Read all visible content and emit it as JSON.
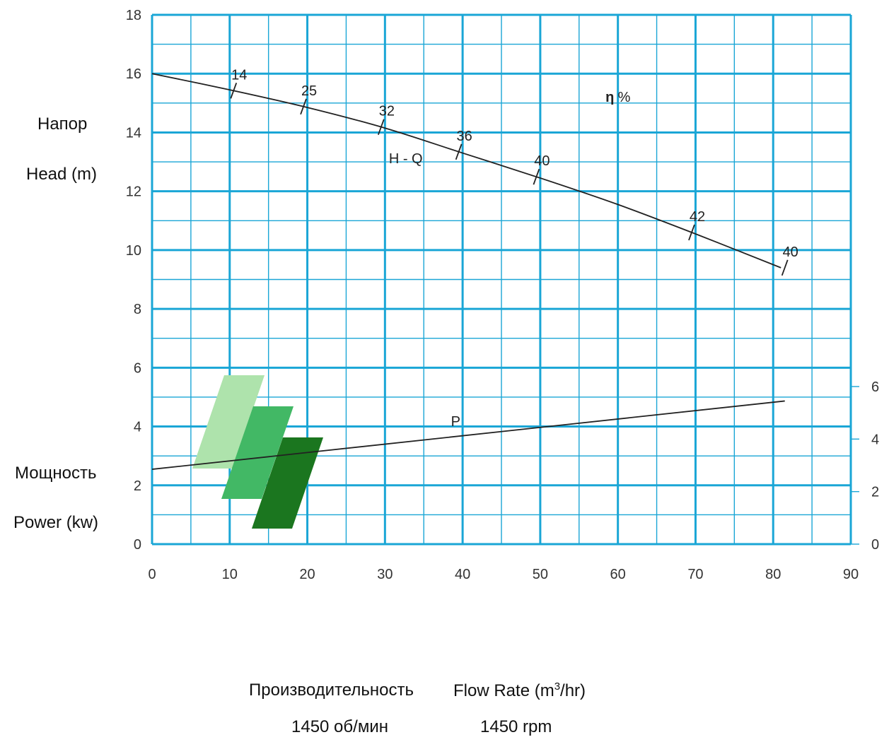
{
  "labels": {
    "head_ru": "Напор",
    "head_en": "Head (m)",
    "power_ru": "Мощность",
    "power_en": "Power (kw)",
    "flow_ru": "Производительность",
    "flow_en_pre": "Flow Rate (m",
    "flow_en_sup": "3",
    "flow_en_post": "/hr)",
    "speed_ru": "1450 об/мин",
    "speed_en": "1450 rpm"
  },
  "colors": {
    "grid": "#1aa6d6",
    "curve": "#222222",
    "logo_light": "#aee3ac",
    "logo_mid": "#42b865",
    "logo_dark": "#1b761f"
  },
  "logo": {
    "name": "three-green-parallelograms"
  },
  "chart_data": {
    "type": "line",
    "x": {
      "label": "",
      "range": [
        0,
        90
      ],
      "ticks": [
        0,
        10,
        20,
        30,
        40,
        50,
        60,
        70,
        80,
        90
      ]
    },
    "y_left": {
      "label": "",
      "range": [
        0,
        18
      ],
      "ticks": [
        0,
        2,
        4,
        6,
        8,
        10,
        12,
        14,
        16,
        18
      ]
    },
    "y_right": {
      "label": "",
      "range": [
        0,
        6
      ],
      "ticks": [
        0,
        2,
        4,
        6
      ]
    },
    "grid": true,
    "annotations": [
      "H - Q",
      "P",
      "η",
      "%"
    ],
    "series": [
      {
        "name": "H - Q",
        "axis": "left",
        "points": [
          [
            0,
            16.0
          ],
          [
            10,
            15.45
          ],
          [
            20,
            14.85
          ],
          [
            30,
            14.15
          ],
          [
            40,
            13.3
          ],
          [
            50,
            12.45
          ],
          [
            60,
            11.55
          ],
          [
            70,
            10.55
          ],
          [
            81,
            9.4
          ]
        ]
      },
      {
        "name": "P",
        "axis": "right",
        "points": [
          [
            0,
            2.85
          ],
          [
            81.5,
            5.45
          ]
        ]
      }
    ],
    "efficiency_marks": [
      {
        "x": 10.5,
        "label": "14"
      },
      {
        "x": 19.5,
        "label": "25"
      },
      {
        "x": 29.5,
        "label": "32"
      },
      {
        "x": 39.5,
        "label": "36"
      },
      {
        "x": 49.5,
        "label": "40"
      },
      {
        "x": 69.5,
        "label": "42"
      },
      {
        "x": 81.5,
        "label": "40"
      }
    ]
  }
}
